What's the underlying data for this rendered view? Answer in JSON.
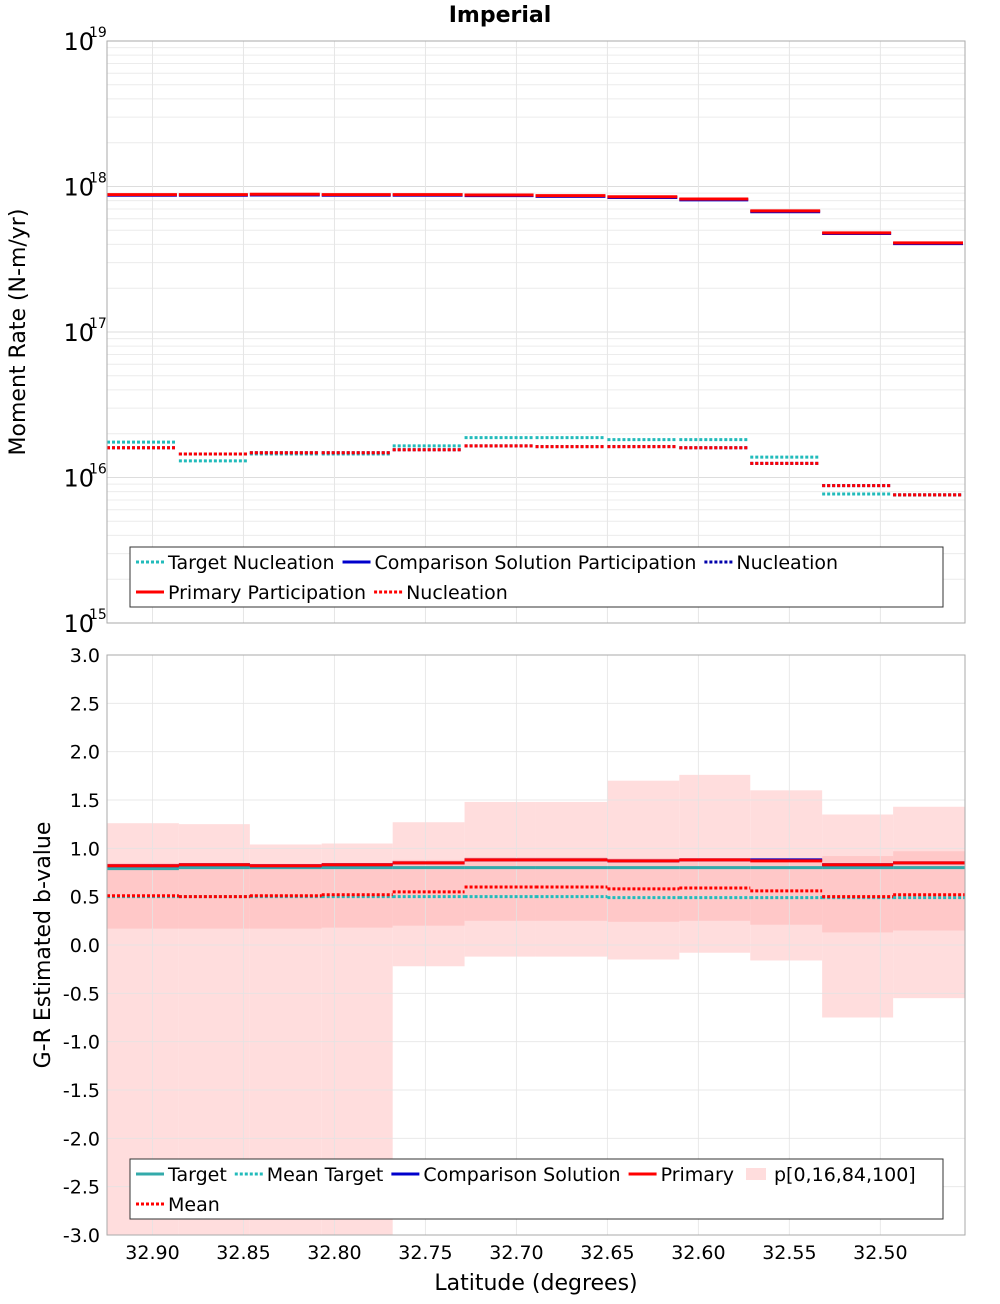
{
  "title": "Imperial",
  "chart_data": [
    {
      "type": "step-line",
      "panel": "top",
      "ylabel": "Moment Rate (N-m/yr)",
      "yscale": "log",
      "ylim": [
        1000000000000000.0,
        1e+19
      ],
      "yticks": [
        {
          "value": 1000000000000000.0,
          "base": "10",
          "exp": "15"
        },
        {
          "value": 1e+16,
          "base": "10",
          "exp": "16"
        },
        {
          "value": 1e+17,
          "base": "10",
          "exp": "17"
        },
        {
          "value": 1e+18,
          "base": "10",
          "exp": "18"
        },
        {
          "value": 1e+19,
          "base": "10",
          "exp": "19"
        }
      ],
      "bin_edges": [
        32.925,
        32.8855,
        32.8465,
        32.807,
        32.768,
        32.7285,
        32.6895,
        32.65,
        32.6105,
        32.5715,
        32.532,
        32.493,
        32.4535
      ],
      "series": [
        {
          "name": "Primary Participation",
          "color": "#ff0000",
          "style": "solid",
          "values": [
            8.8e+17,
            8.8e+17,
            8.85e+17,
            8.8e+17,
            8.8e+17,
            8.75e+17,
            8.65e+17,
            8.5e+17,
            8.2e+17,
            6.8e+17,
            4.8e+17,
            4.1e+17
          ]
        },
        {
          "name": "Comparison Solution Participation",
          "color": "#0000cc",
          "style": "solid",
          "values": [
            8.7e+17,
            8.7e+17,
            8.75e+17,
            8.7e+17,
            8.7e+17,
            8.65e+17,
            8.55e+17,
            8.4e+17,
            8.1e+17,
            6.7e+17,
            4.75e+17,
            4.05e+17
          ]
        },
        {
          "name": "Target Nucleation",
          "color": "#22bbbb",
          "style": "dotted",
          "values": [
            1.75e+16,
            1.3e+16,
            1.45e+16,
            1.45e+16,
            1.65e+16,
            1.88e+16,
            1.88e+16,
            1.82e+16,
            1.82e+16,
            1.38e+16,
            7700000000000000.0,
            7600000000000000.0
          ]
        },
        {
          "name": "Nucleation",
          "color": "#0000aa",
          "style": "dotted",
          "values": [
            1.6e+16,
            1.45e+16,
            1.48e+16,
            1.48e+16,
            1.55e+16,
            1.65e+16,
            1.63e+16,
            1.63e+16,
            1.6e+16,
            1.25e+16,
            8800000000000000.0,
            7600000000000000.0
          ]
        },
        {
          "name": "Nucleation",
          "color": "#ff0000",
          "style": "dotted",
          "values": [
            1.6e+16,
            1.45e+16,
            1.48e+16,
            1.48e+16,
            1.55e+16,
            1.65e+16,
            1.63e+16,
            1.63e+16,
            1.6e+16,
            1.25e+16,
            8800000000000000.0,
            7600000000000000.0
          ]
        }
      ],
      "legend": {
        "placement": "bottom",
        "rows": [
          [
            "Target Nucleation",
            "Comparison Solution Participation",
            "Nucleation"
          ],
          [
            "Primary Participation",
            "Nucleation"
          ]
        ]
      }
    },
    {
      "type": "step-line",
      "panel": "bottom",
      "xlabel": "Latitude (degrees)",
      "ylabel": "G-R Estimated b-value",
      "ylim": [
        -3.0,
        3.0
      ],
      "yticks": [
        "-3.0",
        "-2.5",
        "-2.0",
        "-1.5",
        "-1.0",
        "-0.5",
        "0.0",
        "0.5",
        "1.0",
        "1.5",
        "2.0",
        "2.5",
        "3.0"
      ],
      "xlim": [
        32.925,
        32.4535
      ],
      "xticks": [
        "32.90",
        "32.85",
        "32.80",
        "32.75",
        "32.70",
        "32.65",
        "32.60",
        "32.55",
        "32.50"
      ],
      "bin_edges": [
        32.925,
        32.8855,
        32.8465,
        32.807,
        32.768,
        32.7285,
        32.6895,
        32.65,
        32.6105,
        32.5715,
        32.532,
        32.493,
        32.4535
      ],
      "bands": [
        {
          "name": "p[0,100]",
          "color": "#ffdddd",
          "low": [
            -3.0,
            -3.0,
            -3.0,
            -3.0,
            -0.22,
            -0.12,
            -0.12,
            -0.15,
            -0.08,
            -0.16,
            -0.75,
            -0.55
          ],
          "high": [
            1.26,
            1.25,
            1.04,
            1.05,
            1.27,
            1.48,
            1.48,
            1.7,
            1.76,
            1.6,
            1.35,
            1.43
          ]
        },
        {
          "name": "p[16,84]",
          "color": "#ffc4c4",
          "low": [
            0.17,
            0.17,
            0.17,
            0.18,
            0.2,
            0.25,
            0.25,
            0.24,
            0.25,
            0.21,
            0.13,
            0.15
          ],
          "high": [
            0.85,
            0.85,
            0.84,
            0.85,
            0.88,
            0.91,
            0.91,
            0.9,
            0.9,
            0.9,
            0.92,
            0.97
          ]
        }
      ],
      "series": [
        {
          "name": "Target",
          "color": "#33aaaa",
          "style": "solid",
          "values": [
            0.79,
            0.8,
            0.8,
            0.8,
            0.8,
            0.8,
            0.8,
            0.8,
            0.8,
            0.8,
            0.8,
            0.8
          ]
        },
        {
          "name": "Mean Target",
          "color": "#22bbbb",
          "style": "dotted",
          "values": [
            0.5,
            0.5,
            0.5,
            0.5,
            0.5,
            0.5,
            0.5,
            0.49,
            0.49,
            0.49,
            0.49,
            0.49
          ]
        },
        {
          "name": "Comparison Solution",
          "color": "#0000cc",
          "style": "solid",
          "values": [
            0.82,
            0.83,
            0.82,
            0.83,
            0.85,
            0.88,
            0.88,
            0.87,
            0.88,
            0.88,
            0.83,
            0.85
          ]
        },
        {
          "name": "Primary",
          "color": "#ff0000",
          "style": "solid",
          "values": [
            0.82,
            0.83,
            0.82,
            0.83,
            0.85,
            0.88,
            0.88,
            0.87,
            0.88,
            0.87,
            0.83,
            0.85
          ]
        },
        {
          "name": "Mean",
          "color": "#ff0000",
          "style": "dotted",
          "values": [
            0.51,
            0.5,
            0.51,
            0.52,
            0.55,
            0.6,
            0.6,
            0.58,
            0.59,
            0.56,
            0.5,
            0.52
          ]
        }
      ],
      "legend": {
        "placement": "bottom",
        "rows": [
          [
            "Target",
            "Mean Target",
            "Comparison Solution",
            "Primary",
            "p[0,16,84,100]"
          ],
          [
            "Mean"
          ]
        ]
      }
    }
  ]
}
